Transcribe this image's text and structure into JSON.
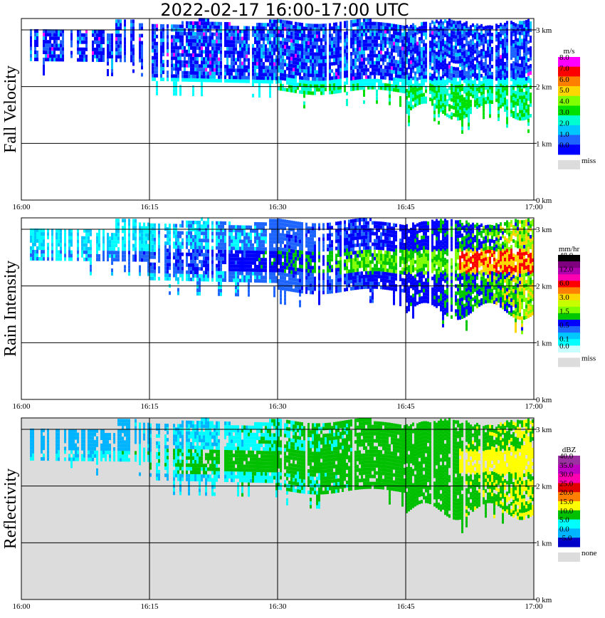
{
  "title": "2022-02-17   16:00-17:00 UTC",
  "x_ticks": [
    "16:00",
    "16:15",
    "16:30",
    "16:45",
    "17:00"
  ],
  "y_ticks": [
    "0 km",
    "1 km",
    "2 km",
    "3 km"
  ],
  "chart_data": [
    {
      "type": "heatmap",
      "ylabel": "Fall Velocity",
      "units": "m/s",
      "xlim": [
        "16:00",
        "17:00"
      ],
      "ylim_km": [
        0,
        3.2
      ],
      "grid": true,
      "legend_levels": [
        "8.0",
        "7.0",
        "6.0",
        "5.0",
        "4.0",
        "3.0",
        "2.0",
        "1.0",
        "0.0"
      ],
      "legend_colors": [
        "#ff00ff",
        "#ff0000",
        "#ff7f00",
        "#ffd700",
        "#7fff00",
        "#00e000",
        "#00ffd0",
        "#00c8ff",
        "#1e64ff",
        "#0000ff"
      ],
      "missing_label": "miss",
      "missing_color": "#dcdcdc",
      "background": "#ffffff"
    },
    {
      "type": "heatmap",
      "ylabel": "Rain Intensity",
      "units": "mm/hr",
      "xlim": [
        "16:00",
        "17:00"
      ],
      "ylim_km": [
        0,
        3.2
      ],
      "grid": true,
      "legend_levels": [
        "48.0",
        "",
        "12.0",
        "",
        "6.0",
        "",
        "3.0",
        "",
        "1.5",
        "",
        "0.5",
        "",
        "0.1",
        "0.0"
      ],
      "legend_colors": [
        "#000000",
        "#7f007f",
        "#b000b0",
        "#ff00b0",
        "#ff0000",
        "#ff7f00",
        "#ffd700",
        "#c8ff00",
        "#7fff00",
        "#00c800",
        "#0000ff",
        "#1e64ff",
        "#00c8ff",
        "#00ffff",
        "#c8ffff"
      ],
      "missing_label": "miss",
      "missing_color": "#dcdcdc",
      "background": "#ffffff"
    },
    {
      "type": "heatmap",
      "ylabel": "Reflectivity",
      "units": "dBZ",
      "xlim": [
        "16:00",
        "17:00"
      ],
      "ylim_km": [
        0,
        3.2
      ],
      "grid": true,
      "legend_levels": [
        "40.0",
        "35.0",
        "30.0",
        "25.0",
        "20.0",
        "15.0",
        "10.0",
        "5.0",
        "0.0",
        "-5.0"
      ],
      "legend_colors": [
        "#9b30a0",
        "#c000c0",
        "#ff00b0",
        "#e00000",
        "#ff7f00",
        "#ffff00",
        "#00c000",
        "#00ffff",
        "#00b4ff",
        "#0000c8"
      ],
      "missing_label": "none",
      "missing_color": "#dcdcdc",
      "background": "#dcdcdc"
    }
  ]
}
